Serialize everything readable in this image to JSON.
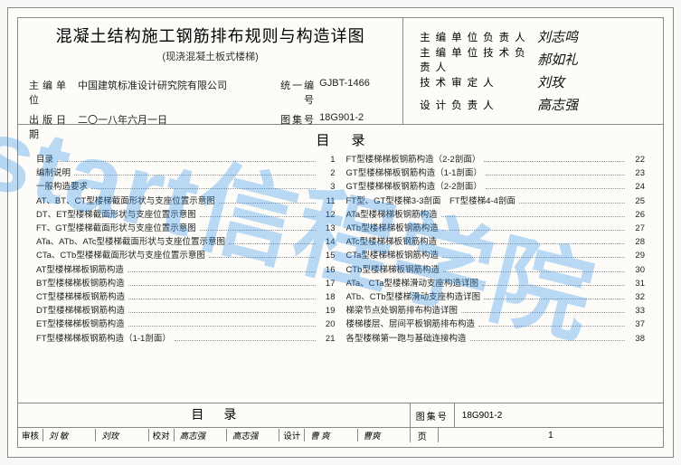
{
  "watermark": "start信程学院",
  "header": {
    "title_main": "混凝土结构施工钢筋排布规则与构造详图",
    "title_sub": "(现浇混凝土板式楼梯)",
    "editor_org_label": "主编单位",
    "editor_org": "中国建筑标准设计研究院有限公司",
    "uniform_no_label": "统一编号",
    "uniform_no": "GJBT-1466",
    "pub_date_label": "出版日期",
    "pub_date": "二〇一八年六月一日",
    "atlas_no_label": "图集号",
    "atlas_no": "18G901-2",
    "signatures": [
      {
        "label": "主编单位负责人",
        "value": "刘志鸣"
      },
      {
        "label": "主编单位技术负责人",
        "value": "郝如礼"
      },
      {
        "label": "技术审定人",
        "value": "刘玫"
      },
      {
        "label": "设计负责人",
        "value": "高志强"
      }
    ]
  },
  "toc_heading": "目录",
  "toc_left": [
    {
      "t": "目录",
      "p": "1"
    },
    {
      "t": "编制说明",
      "p": "2"
    },
    {
      "t": "一般构造要求",
      "p": "3"
    },
    {
      "t": "AT、BT、CT型楼梯截面形状与支座位置示意图",
      "p": "11"
    },
    {
      "t": "DT、ET型楼梯截面形状与支座位置示意图",
      "p": "12"
    },
    {
      "t": "FT、GT型楼梯截面形状与支座位置示意图",
      "p": "13"
    },
    {
      "t": "ATa、ATb、ATc型楼梯截面形状与支座位置示意图",
      "p": "14"
    },
    {
      "t": "CTa、CTb型楼梯截面形状与支座位置示意图",
      "p": "15"
    },
    {
      "t": "AT型楼梯梯板钢筋构造",
      "p": "16"
    },
    {
      "t": "BT型楼梯梯板钢筋构造",
      "p": "17"
    },
    {
      "t": "CT型楼梯梯板钢筋构造",
      "p": "18"
    },
    {
      "t": "DT型楼梯梯板钢筋构造",
      "p": "19"
    },
    {
      "t": "ET型楼梯梯板钢筋构造",
      "p": "20"
    },
    {
      "t": "FT型楼梯梯板钢筋构造（1-1剖面）",
      "p": "21"
    }
  ],
  "toc_right": [
    {
      "t": "FT型楼梯梯板钢筋构造（2-2剖面）",
      "p": "22"
    },
    {
      "t": "GT型楼梯梯板钢筋构造（1-1剖面）",
      "p": "23"
    },
    {
      "t": "GT型楼梯梯板钢筋构造（2-2剖面）",
      "p": "24"
    },
    {
      "t": "FT型、GT型楼梯3-3剖面　FT型楼梯4-4剖面",
      "p": "25"
    },
    {
      "t": "ATa型楼梯梯板钢筋构造",
      "p": "26"
    },
    {
      "t": "ATb型楼梯梯板钢筋构造",
      "p": "27"
    },
    {
      "t": "ATc型楼梯梯板钢筋构造",
      "p": "28"
    },
    {
      "t": "CTa型楼梯梯板钢筋构造",
      "p": "29"
    },
    {
      "t": "CTb型楼梯梯板钢筋构造",
      "p": "30"
    },
    {
      "t": "ATa、CTa型楼梯滑动支座构造详图",
      "p": "31"
    },
    {
      "t": "ATb、CTb型楼梯滑动支座构造详图",
      "p": "32"
    },
    {
      "t": "梯梁节点处钢筋排布构造详图",
      "p": "33"
    },
    {
      "t": "楼梯楼层、层间平板钢筋排布构造",
      "p": "37"
    },
    {
      "t": "各型楼梯第一跑与基础连接构造",
      "p": "38"
    }
  ],
  "footer": {
    "toc_heading": "目录",
    "atlas_label": "图集号",
    "atlas_no": "18G901-2",
    "page_label": "页",
    "page_no": "1",
    "approval": [
      {
        "lab": "审核",
        "val": "刘 敏"
      },
      {
        "lab": "",
        "val": "刘玫"
      },
      {
        "lab": "校对",
        "val": "高志强"
      },
      {
        "lab": "",
        "val": "高志强"
      },
      {
        "lab": "设计",
        "val": "曹 爽"
      },
      {
        "lab": "",
        "val": "曹爽"
      }
    ]
  },
  "colors": {
    "border": "#888888",
    "bg": "#fdfcf9",
    "watermark": "rgba(40,140,230,0.32)"
  }
}
